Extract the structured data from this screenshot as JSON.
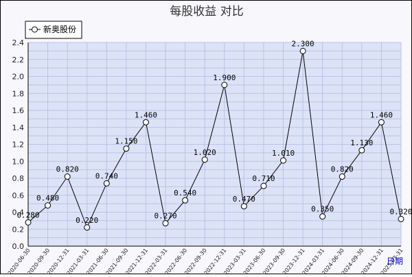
{
  "chart_data": {
    "type": "line",
    "title": "每股收益  对比",
    "xlabel": "日期",
    "ylabel": "",
    "ylim": [
      0,
      2.4
    ],
    "yticks": [
      "0.0",
      "0.2",
      "0.4",
      "0.6",
      "0.8",
      "1.0",
      "1.2",
      "1.4",
      "1.6",
      "1.8",
      "2.0",
      "2.2",
      "2.4"
    ],
    "grid": true,
    "legend_position": "top-left",
    "categories": [
      "2020-06-30",
      "2020-09-30",
      "2020-12-31",
      "2021-03-31",
      "2021-06-30",
      "2021-09-30",
      "2021-12-31",
      "2022-03-31",
      "2022-06-30",
      "2022-09-30",
      "2022-12-31",
      "2023-03-31",
      "2023-06-30",
      "2023-09-30",
      "2023-12-31",
      "2024-03-31",
      "2024-06-30",
      "2024-09-30",
      "2024-12-31",
      "2025-03-31"
    ],
    "series": [
      {
        "name": "新奥股份",
        "values": [
          0.28,
          0.48,
          0.82,
          0.22,
          0.74,
          1.15,
          1.46,
          0.27,
          0.54,
          1.02,
          1.9,
          0.47,
          0.71,
          1.01,
          2.3,
          0.35,
          0.82,
          1.13,
          1.46,
          0.32
        ],
        "labels": [
          "0.280",
          "0.480",
          "0.820",
          "0.220",
          "0.740",
          "1.150",
          "1.460",
          "0.270",
          "0.540",
          "1.020",
          "1.900",
          "0.470",
          "0.710",
          "1.010",
          "2.300",
          "0.350",
          "0.820",
          "1.130",
          "1.460",
          "0.320"
        ]
      }
    ],
    "colors": {
      "plot_bg": "#dde3f7",
      "grid": "#b8c2e6",
      "line": "#000000",
      "marker_fill": "#ffffff"
    }
  }
}
